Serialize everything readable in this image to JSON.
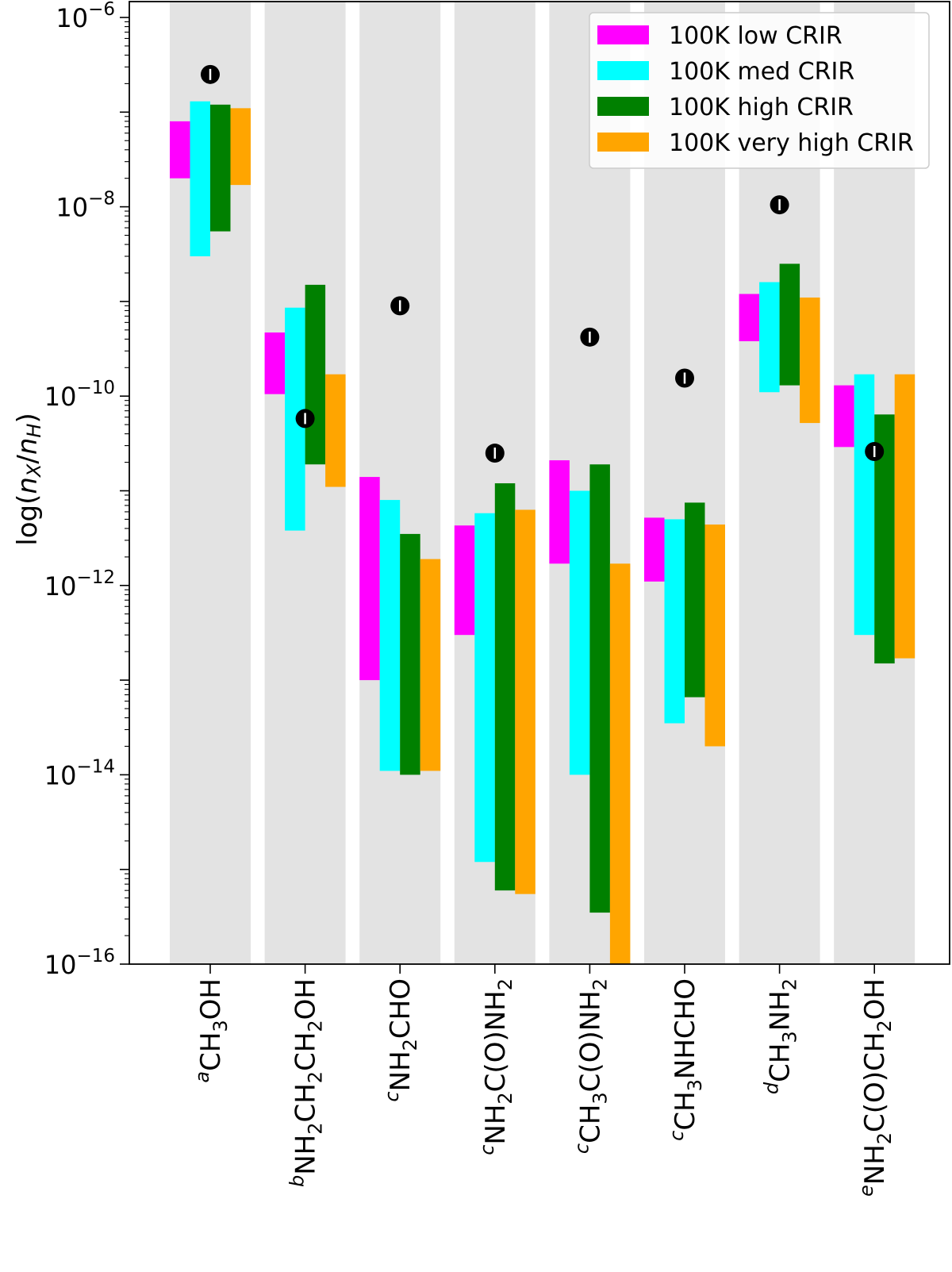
{
  "chart_data": {
    "type": "floating-bar",
    "ylabel": "log(n_X/n_H)",
    "yscale": "log",
    "ylim": [
      1e-16,
      1.3e-06
    ],
    "ytick_labels": [
      {
        "base": "10",
        "exp": "−6",
        "value": 1e-06
      },
      {
        "base": "10",
        "exp": "−8",
        "value": 1e-08
      },
      {
        "base": "10",
        "exp": "−10",
        "value": 1e-10
      },
      {
        "base": "10",
        "exp": "−12",
        "value": 1e-12
      },
      {
        "base": "10",
        "exp": "−14",
        "value": 1e-14
      },
      {
        "base": "10",
        "exp": "−16",
        "value": 1e-16
      }
    ],
    "legend_position": "top-right",
    "series": [
      {
        "name": "100K low CRIR",
        "color": "#ff00ff"
      },
      {
        "name": "100K med CRIR",
        "color": "#00ffff"
      },
      {
        "name": "100K high CRIR",
        "color": "#008000"
      },
      {
        "name": "100K very high CRIR",
        "color": "#ffa500"
      }
    ],
    "categories": [
      {
        "sup": "a",
        "parts": [
          [
            "CH",
            "n"
          ],
          [
            "3",
            "sub"
          ],
          [
            "OH",
            "n"
          ]
        ],
        "ranges": [
          [
            2e-08,
            8e-08
          ],
          [
            3e-09,
            1.3e-07
          ],
          [
            5.5e-09,
            1.2e-07
          ],
          [
            1.7e-08,
            1.1e-07
          ]
        ],
        "observed": 2.5e-07
      },
      {
        "sup": "b",
        "parts": [
          [
            "NH",
            "n"
          ],
          [
            "2",
            "sub"
          ],
          [
            "CH",
            "n"
          ],
          [
            "2",
            "sub"
          ],
          [
            "CH",
            "n"
          ],
          [
            "2",
            "sub"
          ],
          [
            "OH",
            "n"
          ]
        ],
        "ranges": [
          [
            1.05e-10,
            4.7e-10
          ],
          [
            3.8e-12,
            8.6e-10
          ],
          [
            1.9e-11,
            1.5e-09
          ],
          [
            1.1e-11,
            1.7e-10
          ]
        ],
        "observed": 5.8e-11
      },
      {
        "sup": "c",
        "parts": [
          [
            "NH",
            "n"
          ],
          [
            "2",
            "sub"
          ],
          [
            "CHO",
            "n"
          ]
        ],
        "ranges": [
          [
            1e-13,
            1.4e-11
          ],
          [
            1.1e-14,
            8e-12
          ],
          [
            1e-14,
            3.5e-12
          ],
          [
            1.1e-14,
            1.9e-12
          ]
        ],
        "observed": 9e-10
      },
      {
        "sup": "c",
        "parts": [
          [
            "NH",
            "n"
          ],
          [
            "2",
            "sub"
          ],
          [
            "C(O)NH",
            "n"
          ],
          [
            "2",
            "sub"
          ]
        ],
        "ranges": [
          [
            3e-13,
            4.3e-12
          ],
          [
            1.2e-15,
            5.8e-12
          ],
          [
            6e-16,
            1.2e-11
          ],
          [
            5.5e-16,
            6.3e-12
          ]
        ],
        "observed": 2.5e-11
      },
      {
        "sup": "c",
        "parts": [
          [
            "CH",
            "n"
          ],
          [
            "3",
            "sub"
          ],
          [
            "C(O)NH",
            "n"
          ],
          [
            "2",
            "sub"
          ]
        ],
        "ranges": [
          [
            1.7e-12,
            2.1e-11
          ],
          [
            1e-14,
            1e-11
          ],
          [
            3.5e-16,
            1.9e-11
          ],
          [
            1e-16,
            1.7e-12
          ]
        ],
        "observed": 4.2e-10
      },
      {
        "sup": "c",
        "parts": [
          [
            "CH",
            "n"
          ],
          [
            "3",
            "sub"
          ],
          [
            "NHCHO",
            "n"
          ]
        ],
        "ranges": [
          [
            1.1e-12,
            5.2e-12
          ],
          [
            3.5e-14,
            5e-12
          ],
          [
            6.6e-14,
            7.5e-12
          ],
          [
            2e-14,
            4.4e-12
          ]
        ],
        "observed": 1.55e-10
      },
      {
        "sup": "d",
        "parts": [
          [
            "CH",
            "n"
          ],
          [
            "3",
            "sub"
          ],
          [
            "NH",
            "n"
          ],
          [
            "2",
            "sub"
          ]
        ],
        "ranges": [
          [
            3.8e-10,
            1.2e-09
          ],
          [
            1.1e-10,
            1.6e-09
          ],
          [
            1.3e-10,
            2.5e-09
          ],
          [
            5.2e-11,
            1.1e-09
          ]
        ],
        "observed": 1.05e-08
      },
      {
        "sup": "e",
        "parts": [
          [
            "NH",
            "n"
          ],
          [
            "2",
            "sub"
          ],
          [
            "C(O)CH",
            "n"
          ],
          [
            "2",
            "sub"
          ],
          [
            "OH",
            "n"
          ]
        ],
        "ranges": [
          [
            2.9e-11,
            1.3e-10
          ],
          [
            3e-13,
            1.7e-10
          ],
          [
            1.5e-13,
            6.4e-11
          ],
          [
            1.7e-13,
            1.7e-10
          ]
        ],
        "observed": 2.6e-11
      }
    ]
  }
}
